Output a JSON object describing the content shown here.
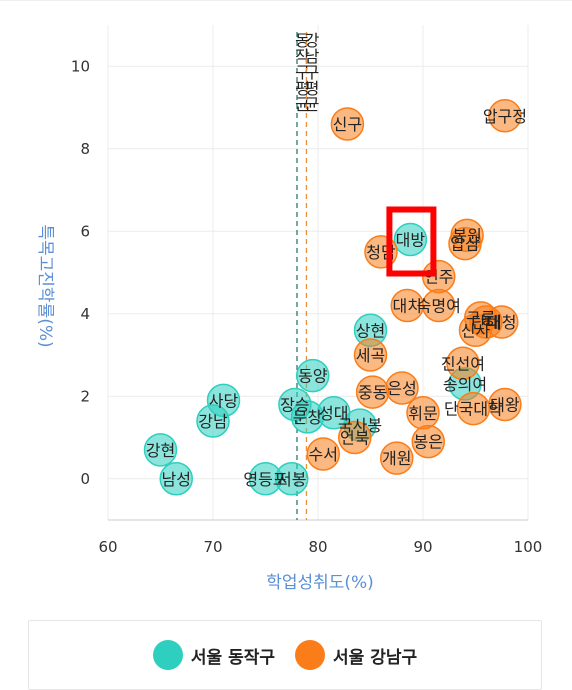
{
  "chart_data": {
    "type": "scatter",
    "xlabel": "학업성취도(%)",
    "ylabel": "특목고진학률(%)",
    "xlim": [
      60,
      100
    ],
    "ylim": [
      -1,
      11
    ],
    "xticks": [
      60,
      70,
      80,
      90,
      100
    ],
    "yticks": [
      0,
      2,
      4,
      6,
      8,
      10
    ],
    "vlines": [
      {
        "name": "동작구평균",
        "x": 78.0,
        "color": "#2a7a6e"
      },
      {
        "name": "강남구평균",
        "x": 78.9,
        "color": "#e8913a"
      }
    ],
    "highlight": "대방",
    "series": [
      {
        "name": "서울 동작구",
        "color": "#2ecfbf",
        "points": [
          {
            "label": "대방",
            "x": 88.8,
            "y": 5.8
          },
          {
            "label": "상현",
            "x": 85.0,
            "y": 3.6
          },
          {
            "label": "동양",
            "x": 79.5,
            "y": 2.5
          },
          {
            "label": "사당",
            "x": 71.0,
            "y": 1.9
          },
          {
            "label": "강남",
            "x": 70.0,
            "y": 1.4
          },
          {
            "label": "장승",
            "x": 77.8,
            "y": 1.8
          },
          {
            "label": "문창",
            "x": 79.0,
            "y": 1.5
          },
          {
            "label": "성대",
            "x": 81.5,
            "y": 1.6
          },
          {
            "label": "국사봉",
            "x": 84.0,
            "y": 1.3
          },
          {
            "label": "강현",
            "x": 65.0,
            "y": 0.7
          },
          {
            "label": "남성",
            "x": 66.5,
            "y": 0.0
          },
          {
            "label": "영등포",
            "x": 75.0,
            "y": 0.0
          },
          {
            "label": "서봉",
            "x": 77.5,
            "y": 0.0
          },
          {
            "label": "송의여",
            "x": 94.0,
            "y": 2.3
          }
        ]
      },
      {
        "name": "서울 강남구",
        "color": "#fa7d1a",
        "points": [
          {
            "label": "신구",
            "x": 82.8,
            "y": 8.6
          },
          {
            "label": "압구정",
            "x": 97.8,
            "y": 8.8
          },
          {
            "label": "봉원",
            "x": 94.2,
            "y": 5.9
          },
          {
            "label": "압삼",
            "x": 94.0,
            "y": 5.7
          },
          {
            "label": "청담",
            "x": 86.0,
            "y": 5.5
          },
          {
            "label": "언주",
            "x": 91.5,
            "y": 4.9
          },
          {
            "label": "대치",
            "x": 88.5,
            "y": 4.2
          },
          {
            "label": "숙명여",
            "x": 91.5,
            "y": 4.2
          },
          {
            "label": "구룡",
            "x": 95.5,
            "y": 3.9
          },
          {
            "label": "단대",
            "x": 96.0,
            "y": 3.8
          },
          {
            "label": "대청",
            "x": 97.5,
            "y": 3.8
          },
          {
            "label": "신사",
            "x": 95.0,
            "y": 3.6
          },
          {
            "label": "세곡",
            "x": 85.0,
            "y": 3.0
          },
          {
            "label": "진선여",
            "x": 93.8,
            "y": 2.8
          },
          {
            "label": "중동",
            "x": 85.2,
            "y": 2.1
          },
          {
            "label": "은성",
            "x": 88.0,
            "y": 2.2
          },
          {
            "label": "휘문",
            "x": 90.0,
            "y": 1.6
          },
          {
            "label": "단국대학",
            "x": 94.8,
            "y": 1.7
          },
          {
            "label": "대왕",
            "x": 97.8,
            "y": 1.8
          },
          {
            "label": "언북",
            "x": 83.5,
            "y": 1.0
          },
          {
            "label": "봉은",
            "x": 90.5,
            "y": 0.9
          },
          {
            "label": "개원",
            "x": 87.5,
            "y": 0.5
          },
          {
            "label": "수서",
            "x": 80.5,
            "y": 0.6
          }
        ]
      }
    ]
  }
}
